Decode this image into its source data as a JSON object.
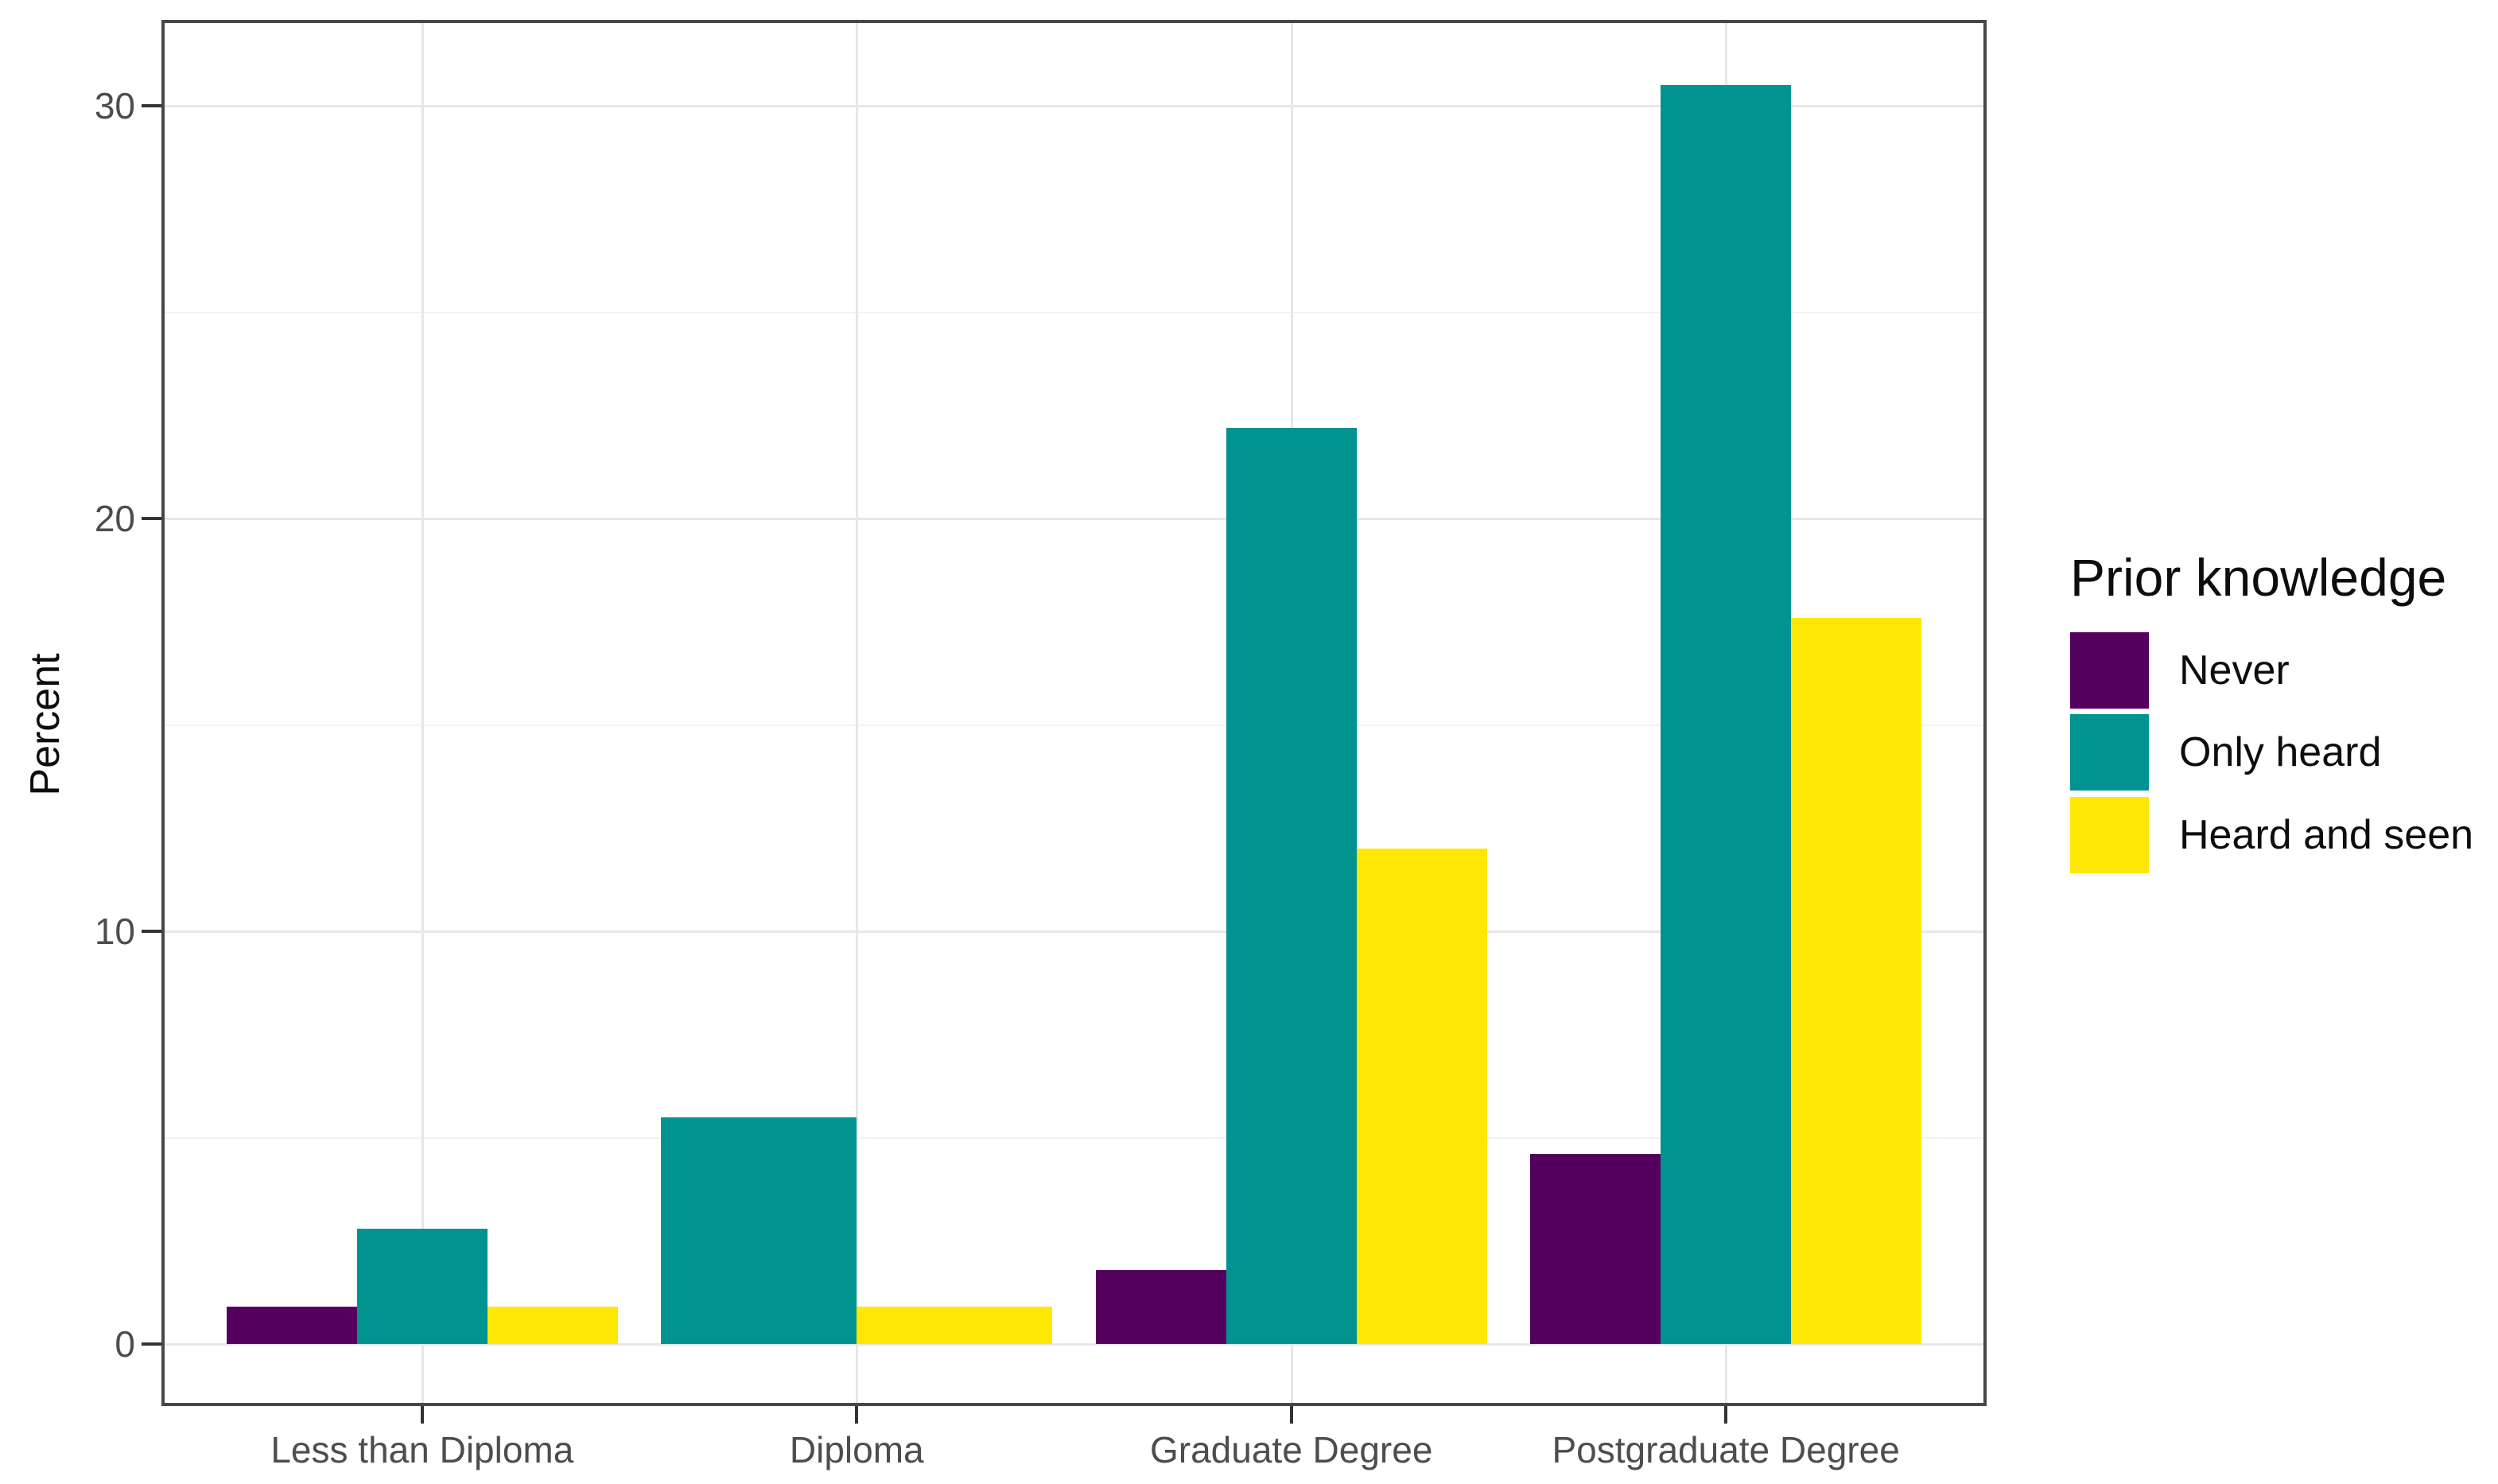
{
  "chart_data": {
    "type": "bar",
    "title": "",
    "xlabel": "",
    "ylabel": "Percent",
    "categories": [
      "Less than Diploma",
      "Diploma",
      "Graduate Degree",
      "Postgraduate Degree"
    ],
    "series": [
      {
        "name": "Never",
        "color": "#55005f",
        "values": [
          0.9,
          null,
          1.8,
          4.6
        ]
      },
      {
        "name": "Only heard",
        "color": "#009390",
        "values": [
          2.8,
          5.5,
          22.2,
          30.5
        ]
      },
      {
        "name": "Heard and seen",
        "color": "#ffe705",
        "values": [
          0.9,
          0.9,
          12.0,
          17.6
        ]
      }
    ],
    "y_axis": {
      "tick_labels": [
        "0",
        "10",
        "20",
        "30"
      ],
      "major_ticks": [
        0,
        10,
        20,
        30
      ],
      "minor_ticks": [
        5,
        15,
        25
      ],
      "range": [
        -1.6,
        32.1
      ]
    },
    "legend": {
      "title": "Prior knowledge",
      "position": "right"
    },
    "grid": "horizontal major+minor gridlines, vertical major gridline at each category center",
    "layout_note": "dodged bars; missing Never bar in Diploma group makes remaining two bars wider"
  }
}
